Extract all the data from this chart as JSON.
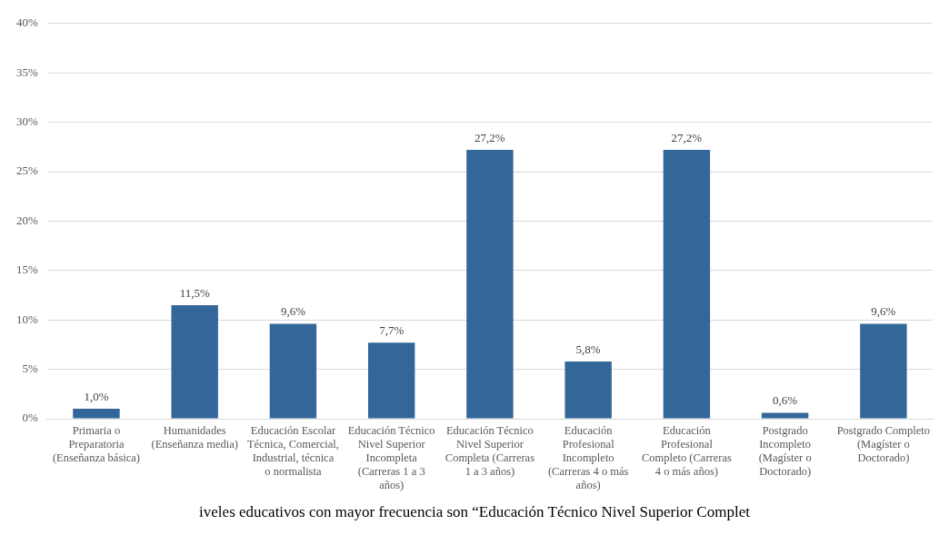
{
  "chart_data": {
    "type": "bar",
    "categories": [
      "Primaria o Preparatoria (Enseñanza básica)",
      "Humanidades (Enseñanza media)",
      "Educación Escolar Técnica, Comercial, Industrial, técnica o normalista",
      "Educación Técnico Nivel Superior Incompleta (Carreras 1 a 3 años)",
      "Educación Técnico Nivel Superior Completa (Carreras 1 a 3 años)",
      "Educación Profesional Incompleto (Carreras 4 o más años)",
      "Educación Profesional Completo (Carreras 4 o más años)",
      "Postgrado Incompleto (Magíster o Doctorado)",
      "Postgrado Completo (Magíster o Doctorado)"
    ],
    "values": [
      1.0,
      11.5,
      9.6,
      7.7,
      27.2,
      5.8,
      27.2,
      0.6,
      9.6
    ],
    "value_labels": [
      "1,0%",
      "11,5%",
      "9,6%",
      "7,7%",
      "27,2%",
      "5,8%",
      "27,2%",
      "0,6%",
      "9,6%"
    ],
    "color": "#336699",
    "ylim": [
      0,
      40
    ],
    "yticks": [
      {
        "value": 0,
        "label": "0%"
      },
      {
        "value": 5,
        "label": "5%"
      },
      {
        "value": 10,
        "label": "10%"
      },
      {
        "value": 15,
        "label": "15%"
      },
      {
        "value": 20,
        "label": "20%"
      },
      {
        "value": 25,
        "label": "25%"
      },
      {
        "value": 30,
        "label": "30%"
      },
      {
        "value": 35,
        "label": "35%"
      },
      {
        "value": 40,
        "label": "40%"
      }
    ],
    "grid": "y",
    "legend": false,
    "annotations": [
      "iveles educativos con mayor frecuencia son “Educación Técnico Nivel Superior Complet"
    ]
  }
}
